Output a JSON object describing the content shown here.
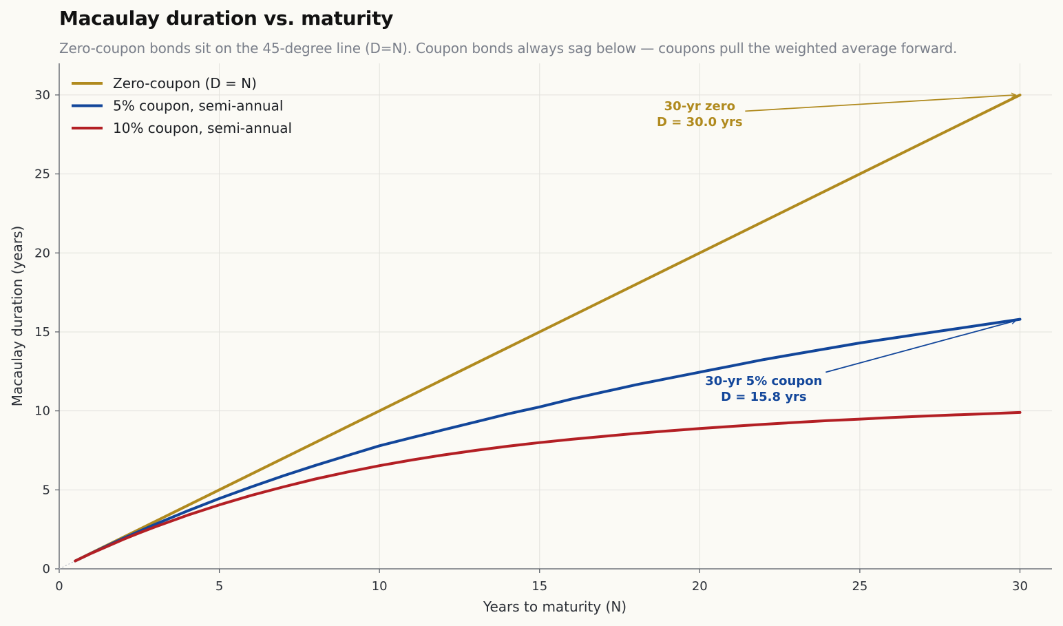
{
  "title": "Macaulay duration vs. maturity",
  "subtitle": "Zero-coupon bonds sit on the 45-degree line (D=N). Coupon bonds always sag below — coupons pull the weighted average forward.",
  "chart_data": {
    "type": "line",
    "xlabel": "Years to maturity (N)",
    "ylabel": "Macaulay duration (years)",
    "xlim": [
      0,
      31
    ],
    "ylim": [
      0,
      32
    ],
    "xticks": [
      0,
      5,
      10,
      15,
      20,
      25,
      30
    ],
    "yticks": [
      0,
      5,
      10,
      15,
      20,
      25,
      30
    ],
    "grid": true,
    "legend_position": "top-left",
    "colors": {
      "zero": "#b08a1e",
      "five": "#12469a",
      "ten": "#b31f24",
      "grid": "#e2e1dc",
      "axis": "#555a63",
      "subtitle": "#7a7f8a",
      "background": "#fbfaf5"
    },
    "series": [
      {
        "name": "Zero-coupon (D = N)",
        "color": "#b08a1e",
        "x": [
          0.5,
          30
        ],
        "y": [
          0.5,
          30
        ]
      },
      {
        "name": "5% coupon, semi-annual",
        "color": "#12469a",
        "x": [
          0.5,
          1,
          1.5,
          2,
          2.5,
          3,
          4,
          5,
          6,
          7,
          8,
          9,
          10,
          11,
          12,
          13,
          14,
          15,
          16,
          17,
          18,
          19,
          20,
          21,
          22,
          23,
          24,
          25,
          26,
          27,
          28,
          29,
          30
        ],
        "y": [
          0.5,
          0.99,
          1.46,
          1.93,
          2.38,
          2.82,
          3.66,
          4.45,
          5.19,
          5.89,
          6.55,
          7.17,
          7.79,
          8.3,
          8.8,
          9.3,
          9.8,
          10.25,
          10.75,
          11.2,
          11.65,
          12.05,
          12.45,
          12.85,
          13.25,
          13.6,
          13.95,
          14.3,
          14.6,
          14.9,
          15.2,
          15.5,
          15.8
        ]
      },
      {
        "name": "10% coupon, semi-annual",
        "color": "#b31f24",
        "x": [
          0.5,
          1,
          1.5,
          2,
          2.5,
          3,
          4,
          5,
          6,
          7,
          8,
          9,
          10,
          11,
          12,
          13,
          14,
          15,
          16,
          17,
          18,
          19,
          20,
          21,
          22,
          23,
          24,
          25,
          26,
          27,
          28,
          29,
          30
        ],
        "y": [
          0.5,
          0.98,
          1.42,
          1.86,
          2.27,
          2.66,
          3.39,
          4.05,
          4.65,
          5.19,
          5.69,
          6.13,
          6.53,
          6.89,
          7.21,
          7.5,
          7.76,
          7.99,
          8.2,
          8.39,
          8.57,
          8.73,
          8.88,
          9.02,
          9.15,
          9.27,
          9.38,
          9.48,
          9.58,
          9.67,
          9.75,
          9.82,
          9.9
        ]
      }
    ],
    "annotations": [
      {
        "id": "zero",
        "lines": [
          "30-yr zero",
          "D = 30.0 yrs"
        ],
        "color": "#b08a1e",
        "text_at": [
          20.0,
          28.8
        ],
        "point": [
          30,
          30.0
        ]
      },
      {
        "id": "five",
        "lines": [
          "30-yr 5% coupon",
          "D = 15.8 yrs"
        ],
        "color": "#12469a",
        "text_at": [
          22.0,
          11.4
        ],
        "point": [
          30,
          15.8
        ]
      }
    ]
  }
}
